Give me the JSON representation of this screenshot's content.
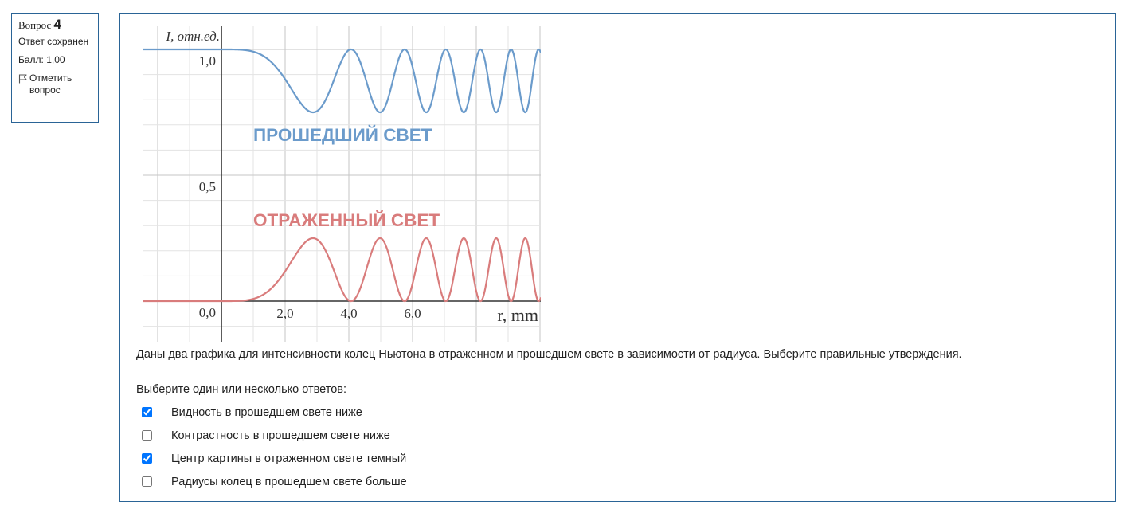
{
  "question_info": {
    "question_word": "Вопрос",
    "question_number": "4",
    "state": "Ответ сохранен",
    "grade": "Балл: 1,00",
    "flag_label": "Отметить вопрос",
    "flag_icon": "flag-icon"
  },
  "chart_data": {
    "type": "line",
    "ylabel": "I, отн.ед.",
    "xlabel": "r, mm",
    "xlim": [
      -2.0,
      10.0
    ],
    "ylim": [
      -0.15,
      1.15
    ],
    "x_ticks": [
      "2,0",
      "4,0",
      "6,0"
    ],
    "y_ticks": [
      "0,0",
      "0,5",
      "1,0"
    ],
    "grid": true,
    "series": [
      {
        "name": "ПРОШЕДШИЙ СВЕТ",
        "color": "#6b9bcb",
        "model": "I = 1 - 0.25*sin^2(0.19*r^2) for r >= 0; 1.0 for r < 0",
        "min": 0.75,
        "max": 1.0
      },
      {
        "name": "ОТРАЖЕННЫЙ СВЕТ",
        "color": "#d97c7c",
        "model": "I = 0.25*sin^2(0.19*r^2) for r >= 0; 0.0 for r < 0",
        "min": 0.0,
        "max": 0.25
      }
    ]
  },
  "question_text": "Даны два графика для интенсивности колец Ньютона в отраженном и прошедшем свете в зависимости от радиуса. Выберите правильные утверждения.",
  "prompt": "Выберите один или несколько ответов:",
  "answers": [
    {
      "label": "Видность в прошедшем свете ниже",
      "checked": true
    },
    {
      "label": "Контрастность в прошедшем свете ниже",
      "checked": false
    },
    {
      "label": "Центр картины в отраженном свете темный",
      "checked": true
    },
    {
      "label": "Радиусы колец в прошедшем свете больше",
      "checked": false
    }
  ]
}
